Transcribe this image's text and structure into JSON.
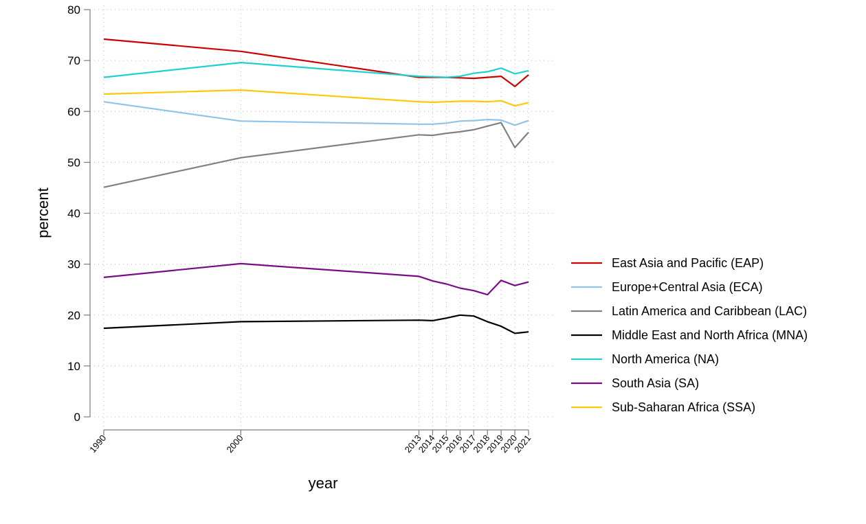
{
  "chart_data": {
    "type": "line",
    "title": "",
    "xlabel": "year",
    "ylabel": "percent",
    "ylim": [
      0,
      80
    ],
    "yticks": [
      0,
      10,
      20,
      30,
      40,
      50,
      60,
      70,
      80
    ],
    "x": [
      1990,
      2000,
      2013,
      2014,
      2015,
      2016,
      2017,
      2018,
      2019,
      2020,
      2021
    ],
    "grid": true,
    "legend_position": "right",
    "series": [
      {
        "name": "East Asia and Pacific (EAP)",
        "color": "#cc0000",
        "values": [
          74.2,
          71.8,
          66.7,
          66.7,
          66.7,
          66.6,
          66.5,
          66.7,
          66.9,
          64.9,
          67.2
        ]
      },
      {
        "name": "Europe+Central Asia (ECA)",
        "color": "#8fc3e8",
        "values": [
          61.9,
          58.1,
          57.5,
          57.5,
          57.7,
          58.1,
          58.2,
          58.4,
          58.3,
          57.3,
          58.2
        ]
      },
      {
        "name": "Latin America and Caribbean (LAC)",
        "color": "#808080",
        "values": [
          45.1,
          50.9,
          55.4,
          55.3,
          55.7,
          56.0,
          56.4,
          57.1,
          57.8,
          52.9,
          55.9
        ]
      },
      {
        "name": "Middle East and North Africa (MNA)",
        "color": "#000000",
        "values": [
          17.4,
          18.7,
          19.0,
          18.9,
          19.4,
          20.0,
          19.8,
          18.7,
          17.8,
          16.4,
          16.7
        ]
      },
      {
        "name": "North America (NA)",
        "color": "#1fd0d0",
        "values": [
          66.7,
          69.6,
          66.9,
          66.8,
          66.7,
          66.9,
          67.5,
          67.8,
          68.5,
          67.4,
          68.0
        ]
      },
      {
        "name": "South Asia (SA)",
        "color": "#7a0a8a",
        "values": [
          27.4,
          30.1,
          27.6,
          26.7,
          26.1,
          25.3,
          24.8,
          24.0,
          26.8,
          25.8,
          26.5
        ]
      },
      {
        "name": "Sub-Saharan Africa (SSA)",
        "color": "#ffc800",
        "values": [
          63.4,
          64.2,
          61.9,
          61.8,
          61.9,
          62.0,
          62.0,
          61.9,
          62.1,
          61.1,
          61.7
        ]
      }
    ]
  }
}
